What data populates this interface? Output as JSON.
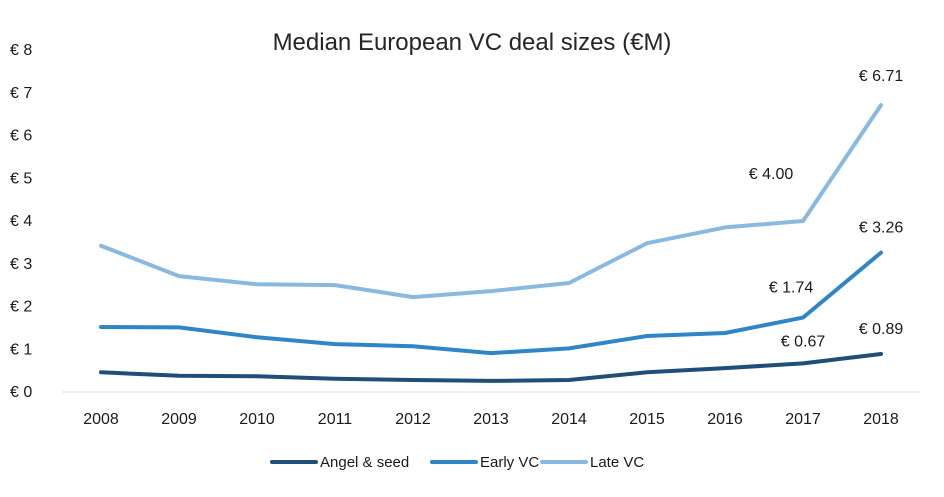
{
  "chart_data": {
    "type": "line",
    "title": "Median European VC deal sizes (€M)",
    "xlabel": "",
    "ylabel": "",
    "categories": [
      "2008",
      "2009",
      "2010",
      "2011",
      "2012",
      "2013",
      "2014",
      "2015",
      "2016",
      "2017",
      "2018"
    ],
    "ylim": [
      0,
      8
    ],
    "y_ticks": [
      0,
      1,
      2,
      3,
      4,
      5,
      6,
      7,
      8
    ],
    "y_tick_labels": [
      "€ 0",
      "€ 1",
      "€ 2",
      "€ 3",
      "€ 4",
      "€ 5",
      "€ 6",
      "€ 7",
      "€ 8"
    ],
    "grid": false,
    "legend_position": "bottom",
    "series": [
      {
        "name": "Angel & seed",
        "color": "#1f4e79",
        "values": [
          0.46,
          0.38,
          0.37,
          0.31,
          0.28,
          0.26,
          0.28,
          0.46,
          0.56,
          0.67,
          0.89
        ]
      },
      {
        "name": "Early VC",
        "color": "#2e86c8",
        "values": [
          1.52,
          1.51,
          1.28,
          1.12,
          1.07,
          0.91,
          1.02,
          1.31,
          1.38,
          1.74,
          3.26
        ]
      },
      {
        "name": "Late VC",
        "color": "#8ab9e0",
        "values": [
          3.42,
          2.71,
          2.52,
          2.5,
          2.22,
          2.36,
          2.55,
          3.48,
          3.85,
          4.0,
          6.71
        ]
      }
    ],
    "data_labels": [
      {
        "series": "Angel & seed",
        "category": "2017",
        "text": "€ 0.67"
      },
      {
        "series": "Angel & seed",
        "category": "2018",
        "text": "€ 0.89"
      },
      {
        "series": "Early VC",
        "category": "2017",
        "text": "€ 1.74"
      },
      {
        "series": "Early VC",
        "category": "2018",
        "text": "€ 3.26"
      },
      {
        "series": "Late VC",
        "category": "2017",
        "text": "€ 4.00"
      },
      {
        "series": "Late VC",
        "category": "2018",
        "text": "€ 6.71"
      }
    ]
  }
}
